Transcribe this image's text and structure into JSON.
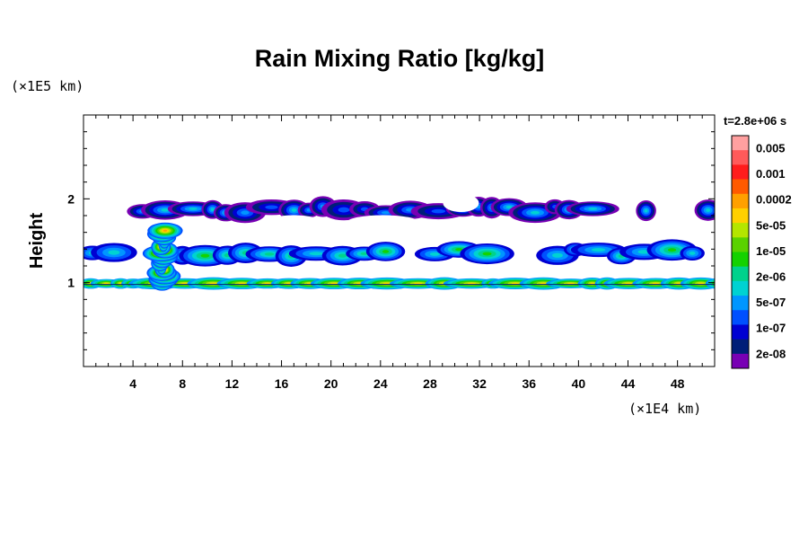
{
  "chart_data": {
    "type": "heatmap",
    "title": "Rain Mixing Ratio [kg/kg]",
    "ylabel": "Height",
    "y_scale_label": "(×1E5 km)",
    "x_scale_label": "(×1E4 km)",
    "time_label": "t=2.8e+06 s",
    "xlim": [
      0,
      51
    ],
    "ylim": [
      0,
      3
    ],
    "x_ticks": [
      "4",
      "8",
      "12",
      "16",
      "20",
      "24",
      "28",
      "32",
      "36",
      "40",
      "44",
      "48"
    ],
    "x_tick_values": [
      4,
      8,
      12,
      16,
      20,
      24,
      28,
      32,
      36,
      40,
      44,
      48
    ],
    "y_ticks": [
      "1",
      "2"
    ],
    "y_tick_values": [
      1,
      2
    ],
    "colorbar": {
      "labels": [
        "0.005",
        "0.001",
        "0.0002",
        "5e-05",
        "1e-05",
        "2e-06",
        "5e-07",
        "1e-07",
        "2e-08"
      ],
      "colors": [
        "#ffa0a0",
        "#ff5a5a",
        "#ff1c1c",
        "#ff5a00",
        "#ffa000",
        "#ffd000",
        "#b4e600",
        "#5ad200",
        "#14d200",
        "#00d28c",
        "#00d2d2",
        "#0096ff",
        "#0050ff",
        "#0000d2",
        "#001e78",
        "#7800b4"
      ]
    },
    "layers": [
      {
        "name": "upper",
        "y_center": 1.87,
        "x_start": 0,
        "x_end": 51,
        "level": 13
      },
      {
        "name": "middle",
        "y_center": 1.36,
        "x_start": 0,
        "x_end": 51,
        "level": 11
      },
      {
        "name": "lower",
        "y_center": 0.99,
        "x_start": 0,
        "x_end": 51,
        "level": 9
      },
      {
        "name": "convective-column",
        "x_center": 6.4,
        "y_start": 1.0,
        "y_end": 1.62,
        "level": 3
      }
    ]
  }
}
